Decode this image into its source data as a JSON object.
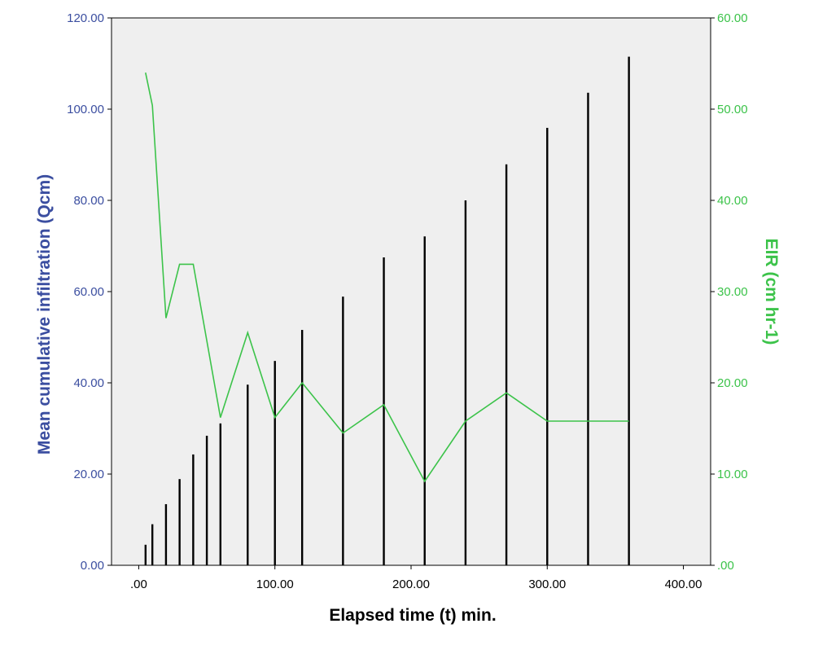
{
  "chart_data": {
    "type": "bar+line",
    "title": "",
    "xlabel": "Elapsed time (t) min.",
    "ylabel_left": "Mean  cumulative infiltration (Qcm)",
    "ylabel_right": "EIR (cm hr-1)",
    "xlim": [
      -20,
      420
    ],
    "ylim_left": [
      0,
      120
    ],
    "ylim_right": [
      0,
      60
    ],
    "x_ticks": [
      0,
      100,
      200,
      300,
      400
    ],
    "x_tick_labels": [
      ".00",
      "100.00",
      "200.00",
      "300.00",
      "400.00"
    ],
    "y_left_ticks": [
      0,
      20,
      40,
      60,
      80,
      100,
      120
    ],
    "y_left_tick_labels": [
      "0.00",
      "20.00",
      "40.00",
      "60.00",
      "80.00",
      "100.00",
      "120.00"
    ],
    "y_right_ticks": [
      0,
      10,
      20,
      30,
      40,
      50,
      60
    ],
    "y_right_tick_labels": [
      ".00",
      "10.00",
      "20.00",
      "30.00",
      "40.00",
      "50.00",
      "60.00"
    ],
    "grid": false,
    "series": [
      {
        "axis": "left",
        "kind": "bar",
        "color": "#000000",
        "x": [
          5,
          10,
          20,
          30,
          40,
          50,
          60,
          80,
          100,
          120,
          150,
          180,
          210,
          240,
          270,
          300,
          330,
          360
        ],
        "values": [
          4.5,
          9,
          13.4,
          18.9,
          24.3,
          28.4,
          31.1,
          39.6,
          44.8,
          51.6,
          58.9,
          67.5,
          72.1,
          80,
          87.9,
          95.9,
          103.6,
          111.5
        ]
      },
      {
        "axis": "right",
        "kind": "line",
        "color": "#3cc34a",
        "x": [
          5,
          10,
          20,
          30,
          40,
          60,
          80,
          100,
          120,
          150,
          180,
          210,
          240,
          270,
          300,
          330,
          360
        ],
        "values": [
          54,
          50.4,
          27.1,
          33,
          33,
          16.2,
          25.5,
          16.2,
          20,
          14.5,
          17.6,
          9.2,
          15.8,
          18.9,
          15.8,
          15.8,
          15.8
        ]
      }
    ]
  },
  "colors": {
    "plot_background": "#efefef",
    "left_axis": "#3b4ea0",
    "right_axis": "#3cc34a",
    "bars": "#000000"
  }
}
